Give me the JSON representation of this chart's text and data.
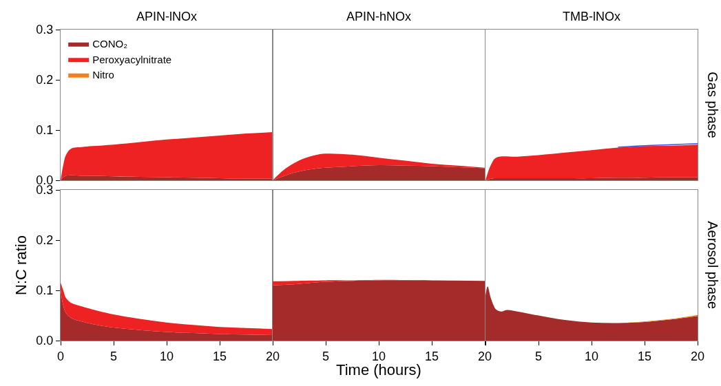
{
  "chart_data": [
    {
      "type": "area",
      "stacked": true,
      "title": "APIN-lNOx",
      "legend": "top left",
      "tick_labels": "y",
      "xlim": [
        0,
        20
      ],
      "xticks": [
        0,
        5,
        10,
        15,
        20
      ],
      "ylim": [
        0,
        0.3
      ],
      "yticks": [
        {
          "value": 0,
          "label": "0.0"
        },
        0.1,
        0.2,
        0.3
      ],
      "x": [
        0,
        0.25,
        0.5,
        1,
        2,
        3,
        5,
        7.5,
        10,
        12.5,
        15,
        17.5,
        20
      ],
      "series": [
        {
          "name": "CONO₂",
          "color": "#a52a2a",
          "values": [
            0,
            0.006,
            0.009,
            0.01,
            0.009,
            0.009,
            0.008,
            0.007,
            0.006,
            0.005,
            0.004,
            0.003,
            0.003
          ]
        },
        {
          "name": "Peroxyacylnitrate",
          "color": "#ee2222",
          "values": [
            0,
            0.024,
            0.041,
            0.053,
            0.057,
            0.059,
            0.063,
            0.069,
            0.075,
            0.08,
            0.085,
            0.09,
            0.093
          ]
        },
        {
          "name": "Nitro",
          "color": "#f57f17",
          "values": [
            null,
            null,
            null,
            null,
            null,
            null,
            null,
            null,
            null,
            null,
            null,
            null,
            null
          ]
        }
      ]
    },
    {
      "type": "area",
      "stacked": true,
      "title": "APIN-hNOx",
      "tick_labels": false,
      "xlim": [
        0,
        20
      ],
      "xticks": [
        0,
        5,
        10,
        15,
        20
      ],
      "ylim": [
        0,
        0.3
      ],
      "yticks": [
        0,
        0.1,
        0.2,
        0.3
      ],
      "x": [
        0,
        1,
        2,
        3,
        4,
        5,
        7.5,
        10,
        12.5,
        15,
        17.5,
        20
      ],
      "series": [
        {
          "color": "#a52a2a",
          "values": [
            0,
            0.008,
            0.015,
            0.02,
            0.023,
            0.025,
            0.028,
            0.03,
            0.029,
            0.028,
            0.026,
            0.024
          ]
        },
        {
          "color": "#ee2222",
          "values": [
            0,
            0.012,
            0.019,
            0.024,
            0.027,
            0.028,
            0.023,
            0.015,
            0.01,
            0.005,
            0.003,
            0.001
          ]
        }
      ]
    },
    {
      "type": "area",
      "stacked": true,
      "title": "TMB-lNOx",
      "annotations": [
        "Gas phase"
      ],
      "tick_labels": false,
      "xlim": [
        0,
        20
      ],
      "xticks": [
        0,
        5,
        10,
        15,
        20
      ],
      "ylim": [
        0,
        0.3
      ],
      "yticks": [
        0,
        0.1,
        0.2,
        0.3
      ],
      "x": [
        0,
        0.5,
        1,
        3,
        5,
        7.5,
        10,
        12.5,
        15,
        17.5,
        20
      ],
      "series": [
        {
          "color": "#a52a2a",
          "values": [
            0,
            0.003,
            0.004,
            0.004,
            0.004,
            0.004,
            0.004,
            0.005,
            0.005,
            0.006,
            0.006
          ]
        },
        {
          "color": "#ee2222",
          "values": [
            0,
            0.027,
            0.041,
            0.043,
            0.046,
            0.051,
            0.056,
            0.06,
            0.063,
            0.063,
            0.065
          ]
        },
        {
          "type": "line",
          "color": "#4455ee",
          "x": [
            12.5,
            15,
            17.5,
            20
          ],
          "values": [
            0.066,
            0.069,
            0.071,
            0.073
          ]
        }
      ]
    },
    {
      "type": "area",
      "stacked": true,
      "ylabel": "N:C ratio",
      "xlim": [
        0,
        20
      ],
      "xticks": [
        0,
        5,
        10,
        15,
        20
      ],
      "ylim": [
        0,
        0.3
      ],
      "yticks": [
        {
          "value": 0,
          "label": "0.0"
        },
        0.1,
        0.2,
        0.3
      ],
      "x": [
        0,
        0.25,
        0.5,
        1,
        2,
        3,
        5,
        7.5,
        10,
        12.5,
        15,
        17.5,
        20
      ],
      "series": [
        {
          "color": "#a52a2a",
          "values": [
            0.1,
            0.07,
            0.055,
            0.045,
            0.038,
            0.033,
            0.026,
            0.021,
            0.017,
            0.015,
            0.013,
            0.012,
            0.011
          ]
        },
        {
          "color": "#ee2222",
          "values": [
            0.015,
            0.03,
            0.03,
            0.03,
            0.03,
            0.029,
            0.026,
            0.022,
            0.019,
            0.016,
            0.014,
            0.013,
            0.012
          ]
        }
      ]
    },
    {
      "type": "area",
      "stacked": true,
      "xlabel": "Time (hours)",
      "tick_labels": "x",
      "xlim": [
        0,
        20
      ],
      "xticks": [
        {
          "value": 0,
          "label": null
        },
        5,
        10,
        15,
        20
      ],
      "ylim": [
        0,
        0.3
      ],
      "yticks": [
        0,
        0.1,
        0.2,
        0.3
      ],
      "x": [
        0,
        2,
        5,
        7.5,
        10,
        15,
        20
      ],
      "series": [
        {
          "color": "#a52a2a",
          "values": [
            0.11,
            0.112,
            0.117,
            0.119,
            0.12,
            0.12,
            0.119
          ]
        },
        {
          "color": "#ee2222",
          "values": [
            0.008,
            0.007,
            0.003,
            0.001,
            0.001,
            0,
            0
          ]
        }
      ]
    },
    {
      "type": "area",
      "stacked": true,
      "annotations": [
        "Aerosol phase"
      ],
      "tick_labels": "x",
      "xlim": [
        0,
        20
      ],
      "xticks": [
        {
          "value": 0,
          "label": null
        },
        5,
        10,
        15,
        20
      ],
      "ylim": [
        0,
        0.3
      ],
      "yticks": [
        0,
        0.1,
        0.2,
        0.3
      ],
      "x": [
        0,
        0.2,
        0.5,
        1,
        1.5,
        2,
        3,
        5,
        7.5,
        10,
        12.5,
        15,
        17.5,
        20
      ],
      "series": [
        {
          "color": "#a52a2a",
          "values": [
            0.09,
            0.108,
            0.085,
            0.062,
            0.058,
            0.061,
            0.058,
            0.05,
            0.041,
            0.036,
            0.035,
            0.037,
            0.042,
            0.049
          ]
        },
        {
          "color": "#f57f17",
          "values": [
            0,
            0,
            0,
            0,
            0,
            0,
            0,
            0,
            0,
            0,
            0,
            0.001,
            0.001,
            0.002
          ]
        }
      ]
    }
  ]
}
